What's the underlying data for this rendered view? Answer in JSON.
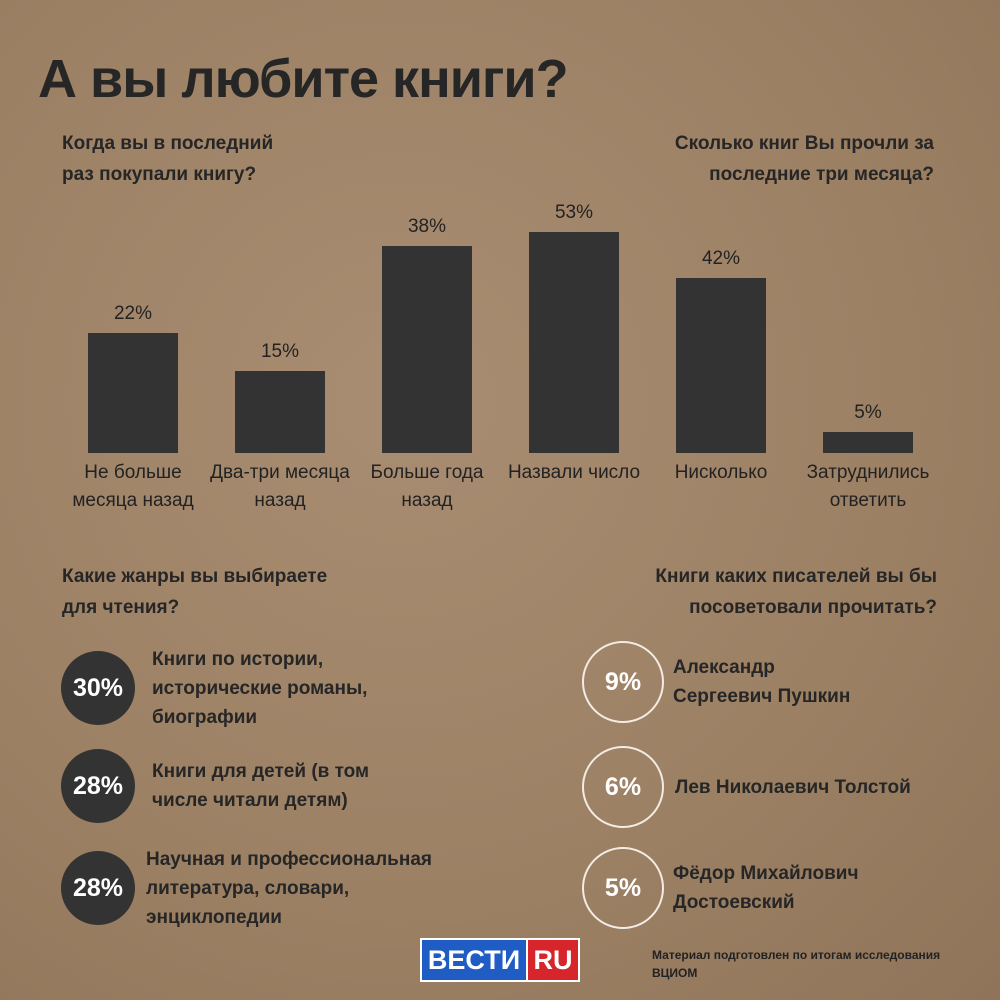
{
  "title": "А вы любите книги?",
  "chart_data": [
    {
      "type": "bar",
      "title": "Когда вы в последний раз покупали книгу?",
      "categories": [
        "Не больше месяца назад",
        "Два-три месяца назад",
        "Больше года назад"
      ],
      "values": [
        22,
        15,
        38
      ],
      "value_labels": [
        "22%",
        "15%",
        "38%"
      ],
      "color": "#333333",
      "ylim": [
        0,
        55
      ]
    },
    {
      "type": "bar",
      "title": "Сколько книг Вы прочли за последние три месяца?",
      "categories": [
        "Назвали число",
        "Нисколько",
        "Затруднились ответить"
      ],
      "values": [
        53,
        42,
        5
      ],
      "value_labels": [
        "53%",
        "42%",
        "5%"
      ],
      "color": "#333333",
      "ylim": [
        0,
        72
      ]
    }
  ],
  "genres": {
    "title": "Какие жанры вы выбираете для чтения?",
    "items": [
      {
        "percent": "30%",
        "text": "Книги по истории, исторические романы, биографии"
      },
      {
        "percent": "28%",
        "text": "Книги для детей (в том числе читали детям)"
      },
      {
        "percent": "28%",
        "text": "Научная и профессиональная литература, словари, энциклопедии"
      }
    ]
  },
  "writers": {
    "title": "Книги каких писателей вы бы посоветовали прочитать?",
    "items": [
      {
        "percent": "9%",
        "text": "Александр Сергеевич Пушкин"
      },
      {
        "percent": "6%",
        "text": "Лев Николаевич Толстой"
      },
      {
        "percent": "5%",
        "text": "Фёдор Михайлович Достоевский"
      }
    ]
  },
  "footer": {
    "logo_main": "ВЕСТИ",
    "logo_ru": "RU",
    "note": "Материал подготовлен по итогам исследования ВЦИОМ"
  }
}
